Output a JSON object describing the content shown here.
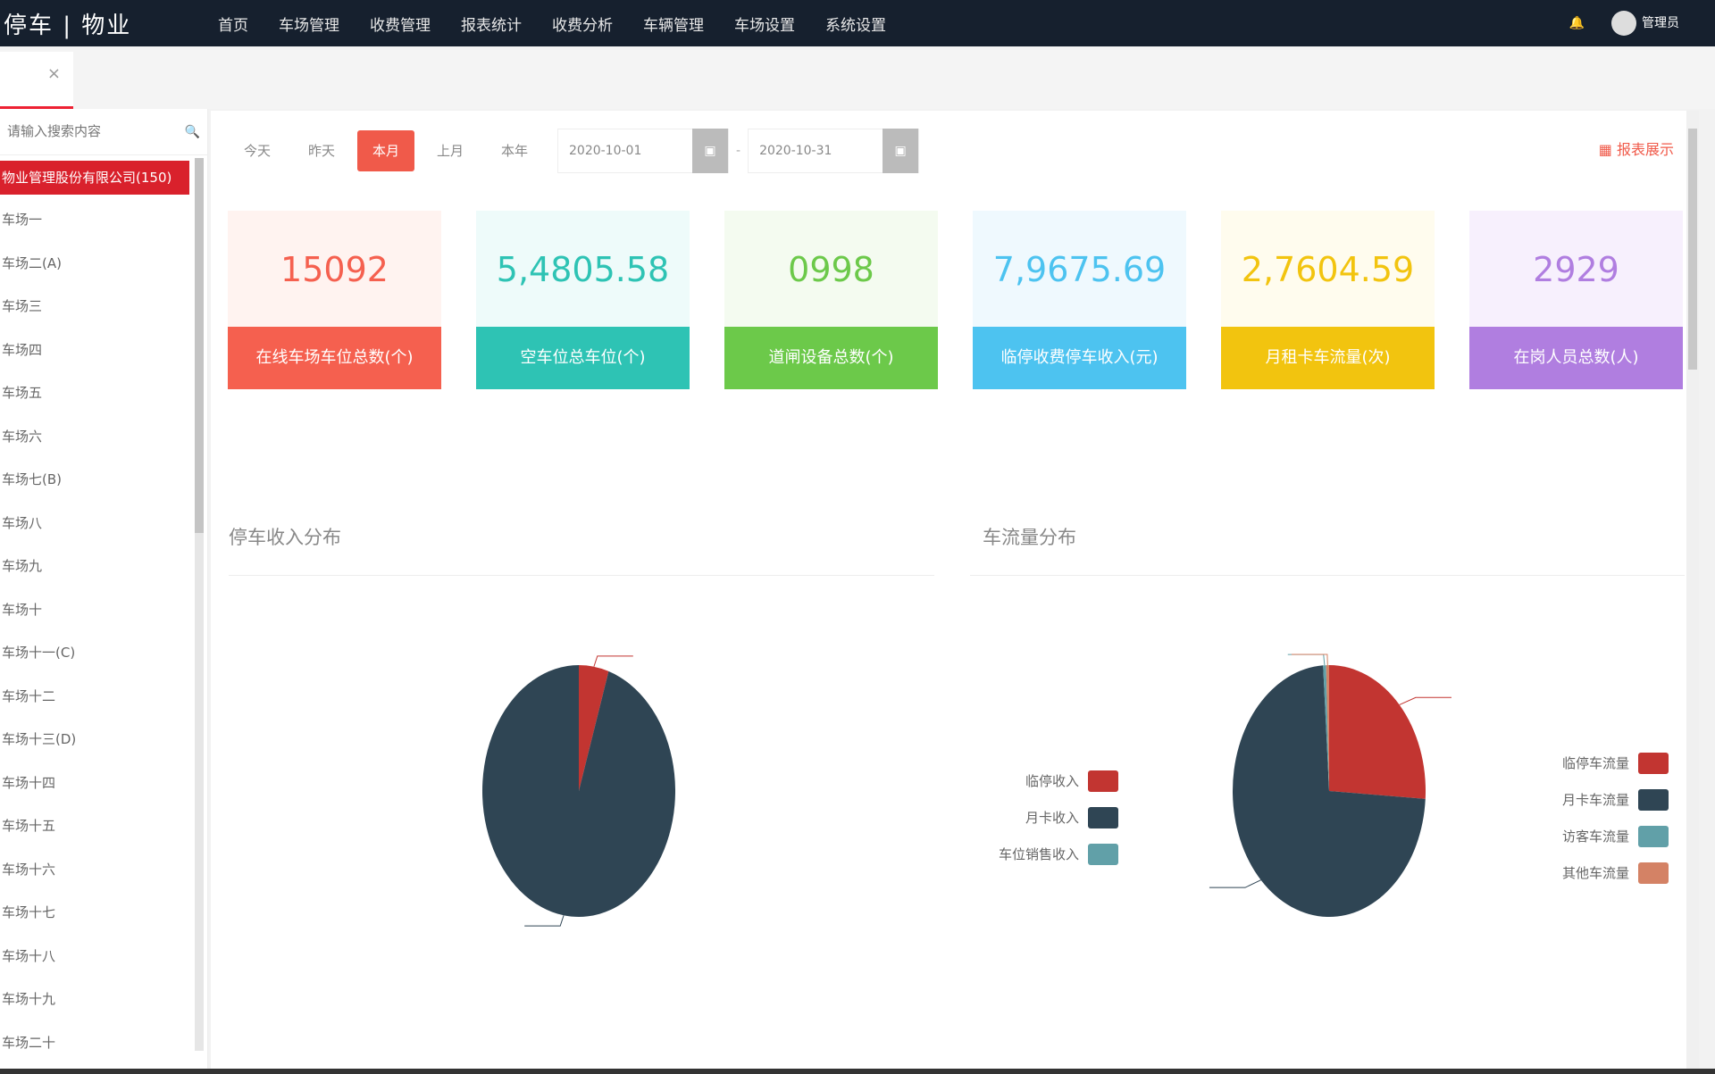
{
  "header": {
    "logo": "停车 | 物业",
    "nav": [
      "首页",
      "车场管理",
      "收费管理",
      "报表统计",
      "收费分析",
      "车辆管理",
      "车场设置",
      "系统设置"
    ],
    "user": "管理员"
  },
  "tab": {
    "close": "×"
  },
  "sidebar": {
    "search_placeholder": "请输入搜索内容",
    "items": [
      "物业管理股份有限公司(150)",
      "车场一",
      "车场二(A)",
      "车场三",
      "车场四",
      "车场五",
      "车场六",
      "车场七(B)",
      "车场八",
      "车场九",
      "车场十",
      "车场十一(C)",
      "车场十二",
      "车场十三(D)",
      "车场十四",
      "车场十五",
      "车场十六",
      "车场十七",
      "车场十八",
      "车场十九",
      "车场二十"
    ]
  },
  "toolbar": {
    "buttons": [
      "今天",
      "昨天",
      "本月",
      "上月",
      "本年"
    ],
    "active": 2,
    "start_date": "2020-10-01",
    "end_date": "2020-10-31",
    "separator": "-",
    "calendar_icon": "calendar-icon",
    "report": "报表展示"
  },
  "cards": [
    {
      "value": "15092",
      "label": "在线车场车位总数(个)",
      "color": "#f5604f",
      "light": "#fff3f0"
    },
    {
      "value": "5,4805.58",
      "label": "空车位总车位(个)",
      "color": "#2ec3b4",
      "light": "#eefbfa"
    },
    {
      "value": "0998",
      "label": "道闸设备总数(个)",
      "color": "#6cc94a",
      "light": "#f4fbf0"
    },
    {
      "value": "7,9675.69",
      "label": "临停收费停车收入(元)",
      "color": "#4dc3f0",
      "light": "#eff9fe"
    },
    {
      "value": "2,7604.59",
      "label": "月租卡车流量(次)",
      "color": "#f2c40f",
      "light": "#fffcee"
    },
    {
      "value": "2929",
      "label": "在岗人员总数(人)",
      "color": "#b07ee0",
      "light": "#f7f0fd"
    }
  ],
  "chart_data": [
    {
      "type": "pie",
      "title": "停车收入分布",
      "categories": [
        "临停收入",
        "月卡收入",
        "车位销售收入"
      ],
      "values": [
        5,
        95,
        0
      ],
      "colors": [
        "#c23531",
        "#2f4554",
        "#61a0a8"
      ],
      "legend": "right"
    },
    {
      "type": "pie",
      "title": "车流量分布",
      "categories": [
        "临停车流量",
        "月卡车流量",
        "访客车流量",
        "其他车流量"
      ],
      "values": [
        26,
        73,
        0.5,
        0.5
      ],
      "colors": [
        "#c23531",
        "#2f4554",
        "#61a0a8",
        "#d48265"
      ],
      "legend": "right"
    }
  ]
}
